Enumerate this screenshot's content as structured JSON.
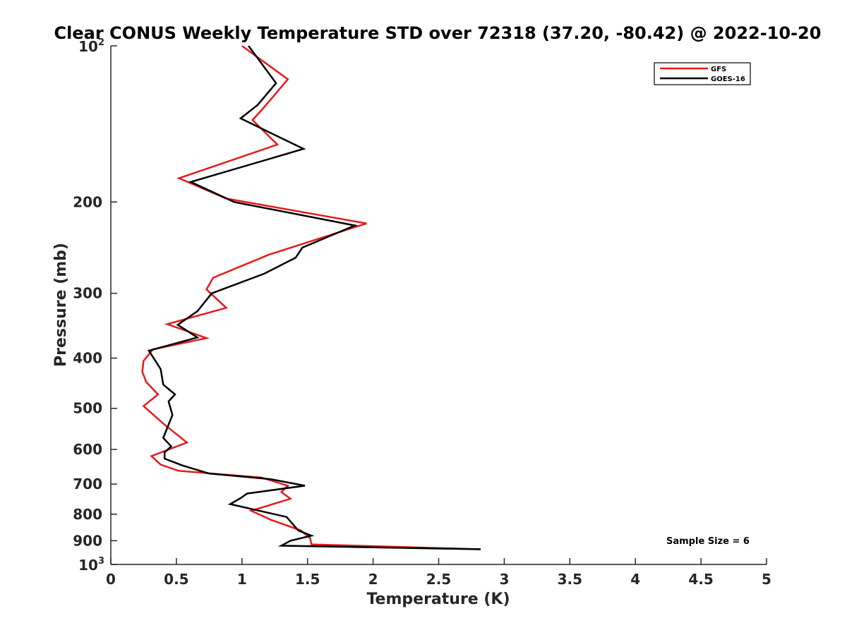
{
  "chart_data": {
    "type": "line",
    "title": "Clear CONUS Weekly Temperature STD over 72318 (37.20, -80.42) @ 2022-10-20",
    "xlabel": "Temperature (K)",
    "ylabel": "Pressure (mb)",
    "xlim": [
      0,
      5
    ],
    "ylim": [
      100,
      1000
    ],
    "y_scale": "log",
    "y_reversed": true,
    "grid": false,
    "legend_position": "top-right",
    "x_ticks": [
      "0",
      "0.5",
      "1",
      "1.5",
      "2",
      "2.5",
      "3",
      "3.5",
      "4",
      "4.5",
      "5"
    ],
    "y_ticks": [
      {
        "value": 100,
        "base": "10",
        "exp": "2"
      },
      {
        "value": 200,
        "label": "200"
      },
      {
        "value": 300,
        "label": "300"
      },
      {
        "value": 400,
        "label": "400"
      },
      {
        "value": 500,
        "label": "500"
      },
      {
        "value": 600,
        "label": "600"
      },
      {
        "value": 700,
        "label": "700"
      },
      {
        "value": 800,
        "label": "800"
      },
      {
        "value": 900,
        "label": "900"
      },
      {
        "value": 1000,
        "base": "10",
        "exp": "3"
      }
    ],
    "annotation": "Sample Size = 6",
    "series": [
      {
        "name": "GFS",
        "color": "#e41a1c",
        "points": [
          [
            1.0,
            100
          ],
          [
            1.35,
            116
          ],
          [
            1.15,
            133
          ],
          [
            1.08,
            139
          ],
          [
            1.27,
            155
          ],
          [
            0.52,
            180
          ],
          [
            0.88,
            197
          ],
          [
            1.95,
            220
          ],
          [
            1.2,
            253
          ],
          [
            0.78,
            280
          ],
          [
            0.73,
            295
          ],
          [
            0.88,
            320
          ],
          [
            0.43,
            344
          ],
          [
            0.73,
            366
          ],
          [
            0.32,
            385
          ],
          [
            0.25,
            405
          ],
          [
            0.24,
            425
          ],
          [
            0.27,
            445
          ],
          [
            0.36,
            470
          ],
          [
            0.25,
            495
          ],
          [
            0.4,
            535
          ],
          [
            0.58,
            582
          ],
          [
            0.31,
            618
          ],
          [
            0.38,
            642
          ],
          [
            0.52,
            660
          ],
          [
            1.15,
            680
          ],
          [
            1.35,
            705
          ],
          [
            1.3,
            725
          ],
          [
            1.37,
            747
          ],
          [
            1.07,
            788
          ],
          [
            1.22,
            820
          ],
          [
            1.45,
            860
          ],
          [
            1.52,
            890
          ],
          [
            1.53,
            915
          ],
          [
            2.82,
            935
          ]
        ]
      },
      {
        "name": "GOES-16",
        "color": "#000000",
        "points": [
          [
            1.05,
            100
          ],
          [
            1.26,
            118
          ],
          [
            1.12,
            130
          ],
          [
            0.99,
            138
          ],
          [
            1.47,
            158
          ],
          [
            0.61,
            183
          ],
          [
            0.94,
            200
          ],
          [
            1.86,
            222
          ],
          [
            1.46,
            245
          ],
          [
            1.41,
            256
          ],
          [
            1.17,
            275
          ],
          [
            0.77,
            300
          ],
          [
            0.66,
            325
          ],
          [
            0.51,
            345
          ],
          [
            0.66,
            365
          ],
          [
            0.29,
            387
          ],
          [
            0.38,
            420
          ],
          [
            0.4,
            450
          ],
          [
            0.49,
            470
          ],
          [
            0.44,
            485
          ],
          [
            0.47,
            515
          ],
          [
            0.4,
            570
          ],
          [
            0.46,
            592
          ],
          [
            0.41,
            608
          ],
          [
            0.41,
            625
          ],
          [
            0.55,
            645
          ],
          [
            0.75,
            668
          ],
          [
            1.22,
            685
          ],
          [
            1.48,
            705
          ],
          [
            1.04,
            730
          ],
          [
            0.99,
            745
          ],
          [
            0.91,
            765
          ],
          [
            1.34,
            810
          ],
          [
            1.43,
            860
          ],
          [
            1.53,
            880
          ],
          [
            1.37,
            900
          ],
          [
            1.3,
            920
          ],
          [
            2.82,
            935
          ]
        ]
      }
    ]
  }
}
